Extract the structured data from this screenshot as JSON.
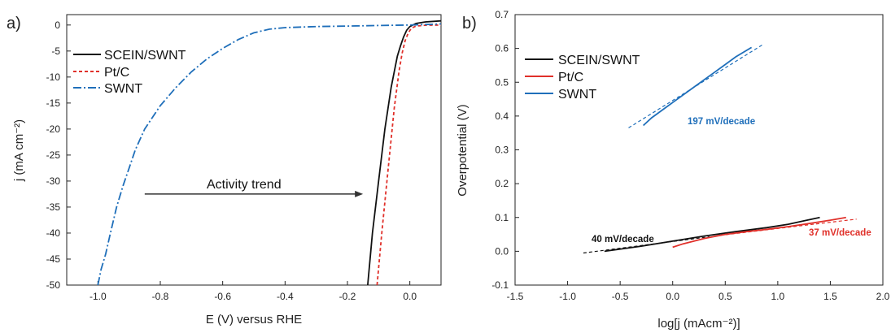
{
  "figure": {
    "panel_a_label": "a)",
    "panel_b_label": "b)",
    "colors": {
      "black": "#111111",
      "red": "#e0302a",
      "blue": "#1f6fba",
      "axis": "#222222"
    }
  },
  "chart_data": [
    {
      "type": "line",
      "panel": "a)",
      "xlabel": "E (V) versus RHE",
      "ylabel": "j (mA cm⁻²)",
      "xlim": [
        -1.1,
        0.1
      ],
      "ylim": [
        -50,
        2
      ],
      "xticks": [
        -1.0,
        -0.8,
        -0.6,
        -0.4,
        -0.2,
        0.0
      ],
      "xtick_labels": [
        "-1.0",
        "-0.8",
        "-0.6",
        "-0.4",
        "-0.2",
        "0.0"
      ],
      "yticks": [
        0,
        -5,
        -10,
        -15,
        -20,
        -25,
        -30,
        -35,
        -40,
        -45,
        -50
      ],
      "ytick_labels": [
        "0",
        "-5",
        "-10",
        "-15",
        "-20",
        "-25",
        "-30",
        "-35",
        "-40",
        "-45",
        "-50"
      ],
      "legend_position": "upper-left",
      "series": [
        {
          "name": "SCEIN/SWNT",
          "color": "#111111",
          "style": "solid",
          "x": [
            -0.135,
            -0.12,
            -0.1,
            -0.08,
            -0.06,
            -0.04,
            -0.03,
            -0.02,
            -0.01,
            0.0,
            0.02,
            0.05,
            0.1
          ],
          "y": [
            -50,
            -40,
            -30,
            -20,
            -12,
            -6,
            -4,
            -2.3,
            -1.0,
            -0.3,
            0.3,
            0.6,
            0.8
          ]
        },
        {
          "name": "Pt/C",
          "color": "#e0302a",
          "style": "dash",
          "x": [
            -0.105,
            -0.09,
            -0.07,
            -0.05,
            -0.035,
            -0.025,
            -0.015,
            -0.005,
            0.005,
            0.02,
            0.05,
            0.1
          ],
          "y": [
            -50,
            -40,
            -28,
            -16,
            -9,
            -5.5,
            -3,
            -1.5,
            -0.6,
            -0.2,
            -0.05,
            0.0
          ]
        },
        {
          "name": "SWNT",
          "color": "#1f6fba",
          "style": "dashdot",
          "x": [
            -1.0,
            -0.99,
            -0.975,
            -0.96,
            -0.94,
            -0.92,
            -0.9,
            -0.88,
            -0.85,
            -0.8,
            -0.75,
            -0.7,
            -0.65,
            -0.6,
            -0.55,
            -0.5,
            -0.45,
            -0.4,
            -0.3,
            -0.2,
            -0.1,
            0.0,
            0.05,
            0.1
          ],
          "y": [
            -50,
            -47,
            -44,
            -40,
            -35,
            -31,
            -27.5,
            -24,
            -20,
            -15.5,
            -12,
            -9,
            -6.5,
            -4.5,
            -2.8,
            -1.5,
            -0.8,
            -0.5,
            -0.3,
            -0.2,
            -0.1,
            0.0,
            0.1,
            0.2
          ]
        }
      ],
      "annotation": {
        "text": "Activity trend",
        "arrow_from": [
          -0.85,
          -32.5
        ],
        "arrow_to": [
          -0.15,
          -32.5
        ]
      }
    },
    {
      "type": "line",
      "panel": "b)",
      "xlabel": "log[j (mAcm⁻²)]",
      "ylabel": "Overpotential (V)",
      "xlim": [
        -1.5,
        2.0
      ],
      "ylim": [
        -0.1,
        0.7
      ],
      "xticks": [
        -1.5,
        -1.0,
        -0.5,
        0.0,
        0.5,
        1.0,
        1.5,
        2.0
      ],
      "xtick_labels": [
        "-1.5",
        "-1.0",
        "-0.5",
        "0.0",
        "0.5",
        "1.0",
        "1.5",
        "2.0"
      ],
      "yticks": [
        -0.1,
        0.0,
        0.1,
        0.2,
        0.3,
        0.4,
        0.5,
        0.6,
        0.7
      ],
      "ytick_labels": [
        "-0.1",
        "0.0",
        "0.1",
        "0.2",
        "0.3",
        "0.4",
        "0.5",
        "0.6",
        "0.7"
      ],
      "legend_position": "upper-left",
      "series": [
        {
          "name": "SCEIN/SWNT",
          "color": "#111111",
          "x": [
            -0.65,
            -0.3,
            0.0,
            0.3,
            0.6,
            0.9,
            1.1,
            1.25,
            1.4
          ],
          "y": [
            0.0,
            0.015,
            0.03,
            0.045,
            0.058,
            0.07,
            0.08,
            0.09,
            0.1
          ]
        },
        {
          "name": "Pt/C",
          "color": "#e0302a",
          "x": [
            0.0,
            0.1,
            0.3,
            0.5,
            0.7,
            0.9,
            1.1,
            1.3,
            1.5,
            1.65
          ],
          "y": [
            0.012,
            0.022,
            0.038,
            0.05,
            0.058,
            0.065,
            0.073,
            0.082,
            0.092,
            0.1
          ]
        },
        {
          "name": "SWNT",
          "color": "#1f6fba",
          "x": [
            -0.28,
            -0.2,
            0.0,
            0.2,
            0.4,
            0.6,
            0.75
          ],
          "y": [
            0.372,
            0.395,
            0.44,
            0.485,
            0.53,
            0.575,
            0.603
          ]
        }
      ],
      "fit_lines": [
        {
          "color": "#111111",
          "x": [
            -0.85,
            0.35
          ],
          "y": [
            -0.005,
            0.043
          ]
        },
        {
          "color": "#e0302a",
          "x": [
            0.45,
            1.75
          ],
          "y": [
            0.047,
            0.095
          ]
        },
        {
          "color": "#1f6fba",
          "x": [
            -0.42,
            0.85
          ],
          "y": [
            0.365,
            0.61
          ]
        }
      ],
      "annotations": [
        {
          "text": "197 mV/decade",
          "color": "#1f6fba"
        },
        {
          "text": "40 mV/decade",
          "color": "#111111"
        },
        {
          "text": "37 mV/decade",
          "color": "#e0302a"
        }
      ]
    }
  ]
}
